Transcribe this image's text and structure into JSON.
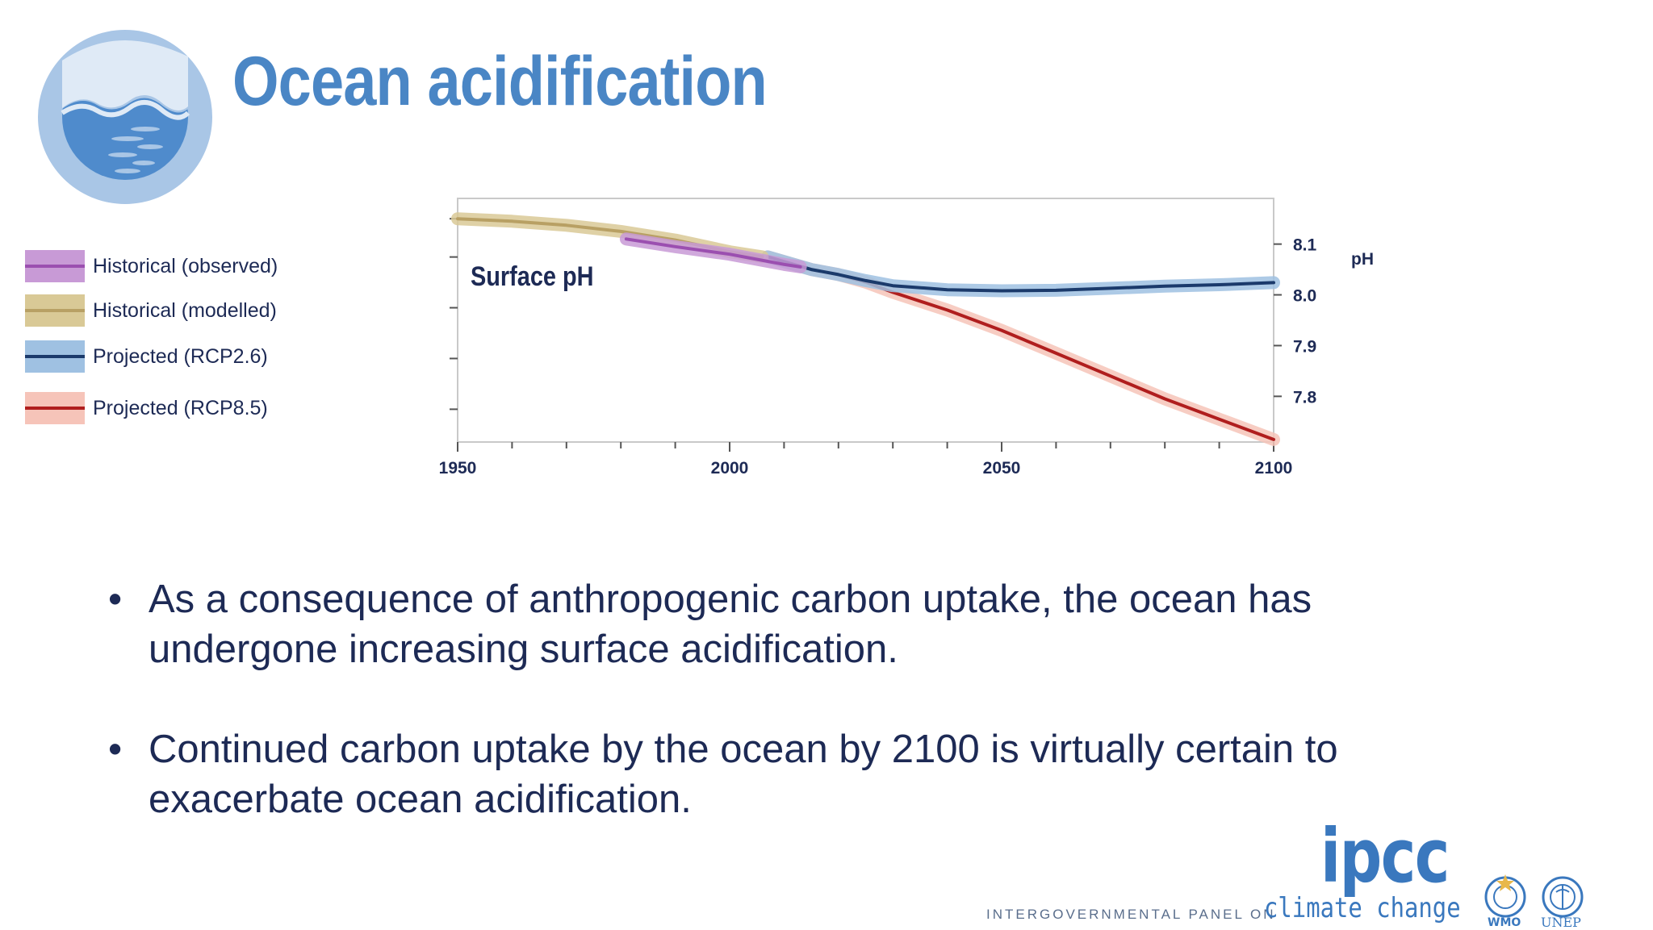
{
  "slide": {
    "title": "Ocean acidification",
    "bullets": [
      "As a consequence of anthropogenic carbon uptake, the ocean has undergone increasing surface acidification.",
      "Continued carbon uptake by the ocean by 2100 is virtually certain to exacerbate ocean acidification."
    ],
    "bullet_char": "•",
    "footer": {
      "org_prefix": "INTERGOVERNMENTAL PANEL ON",
      "org_suffix": "climate change",
      "logo_text": "ipcc",
      "partner_1": "WMO",
      "partner_2": "UNEP"
    }
  },
  "colors": {
    "title": "#4a86c5",
    "text": "#1d2a55",
    "historical_observed": "#9b4fb0",
    "historical_modelled": "#cdb877",
    "rcp26_line": "#1b3a6b",
    "rcp26_band": "#9fc1e2",
    "rcp85_line": "#b01e1e",
    "rcp85_band": "#f6c4b9"
  },
  "chart_data": {
    "type": "line",
    "title": "Surface pH",
    "ylabel": "pH",
    "xlim": [
      1950,
      2100
    ],
    "ylim": [
      7.71,
      8.19
    ],
    "xticks": [
      1950,
      2000,
      2050,
      2100
    ],
    "yticks": [
      8.1,
      8.0,
      7.9,
      7.8
    ],
    "y_axis_side": "right",
    "grid": false,
    "legend_position": "left",
    "series": [
      {
        "name": "Historical (observed)",
        "color": "#9b4fb0",
        "band": "#c89ad6",
        "x": [
          1981,
          1990,
          2000,
          2005,
          2010,
          2013
        ],
        "y": [
          8.11,
          8.095,
          8.08,
          8.07,
          8.06,
          8.055
        ]
      },
      {
        "name": "Historical (modelled)",
        "color": "#b8a064",
        "band": "#d9c996",
        "x": [
          1950,
          1960,
          1970,
          1980,
          1990,
          2000,
          2006
        ],
        "y": [
          8.15,
          8.145,
          8.137,
          8.125,
          8.108,
          8.085,
          8.075
        ]
      },
      {
        "name": "Projected (RCP2.6)",
        "color": "#1b3a6b",
        "band": "#9fc1e2",
        "x": [
          2007,
          2015,
          2020,
          2025,
          2030,
          2040,
          2050,
          2060,
          2070,
          2080,
          2090,
          2100
        ],
        "y": [
          8.075,
          8.05,
          8.04,
          8.028,
          8.018,
          8.01,
          8.008,
          8.009,
          8.013,
          8.017,
          8.02,
          8.024
        ]
      },
      {
        "name": "Projected (RCP8.5)",
        "color": "#b01e1e",
        "band": "#f6c4b9",
        "x": [
          2007,
          2015,
          2020,
          2025,
          2030,
          2040,
          2050,
          2060,
          2070,
          2080,
          2090,
          2100
        ],
        "y": [
          8.075,
          8.05,
          8.04,
          8.025,
          8.005,
          7.97,
          7.93,
          7.885,
          7.84,
          7.795,
          7.755,
          7.715
        ]
      }
    ]
  }
}
